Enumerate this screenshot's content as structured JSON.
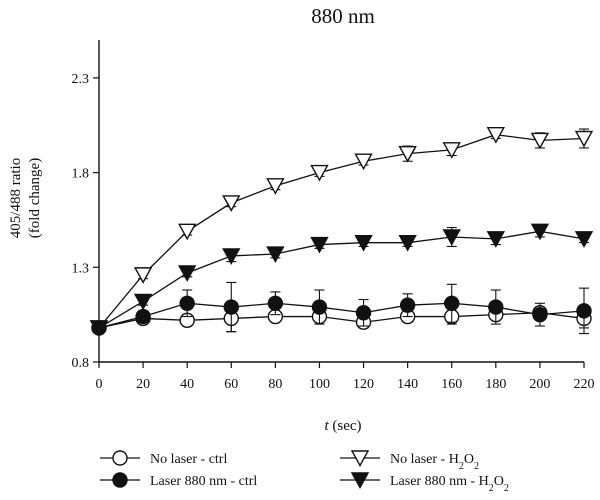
{
  "chart_data": {
    "type": "line",
    "title": "880 nm",
    "xlabel_italic": "t",
    "xlabel_rest": " (sec)",
    "ylabel_line1": "405/488 ratio",
    "ylabel_line2": "(fold change)",
    "x": [
      0,
      20,
      40,
      60,
      80,
      100,
      120,
      140,
      160,
      180,
      200,
      220
    ],
    "xlim": [
      0,
      220
    ],
    "ylim": [
      0.8,
      2.5
    ],
    "yticks": [
      0.8,
      1.3,
      1.8,
      2.3
    ],
    "ytick_labels": [
      "0.8",
      "1.3",
      "1.8",
      "2.3"
    ],
    "xtick_labels": [
      "0",
      "20",
      "40",
      "60",
      "80",
      "100",
      "120",
      "140",
      "160",
      "180",
      "200",
      "220"
    ],
    "grid": false,
    "legend_position": "bottom",
    "series": [
      {
        "name": "No laser - ctrl",
        "label_prefix": "No laser - ctrl",
        "label_sub": "",
        "label_suffix": "",
        "marker": "circle-open",
        "values": [
          0.98,
          1.03,
          1.02,
          1.03,
          1.04,
          1.04,
          1.01,
          1.04,
          1.04,
          1.05,
          1.06,
          1.03
        ],
        "errors": [
          0.01,
          0.02,
          0.03,
          0.07,
          0.02,
          0.03,
          0.03,
          0.03,
          0.04,
          0.02,
          0.02,
          0.05
        ]
      },
      {
        "name": "Laser 880 nm - ctrl",
        "label_prefix": "Laser 880 nm - ctrl",
        "label_sub": "",
        "label_suffix": "",
        "marker": "circle-filled",
        "values": [
          0.98,
          1.04,
          1.11,
          1.09,
          1.11,
          1.09,
          1.06,
          1.1,
          1.11,
          1.09,
          1.05,
          1.07
        ],
        "errors": [
          0.01,
          0.03,
          0.07,
          0.13,
          0.06,
          0.09,
          0.07,
          0.06,
          0.1,
          0.09,
          0.06,
          0.12
        ]
      },
      {
        "name": "No laser - H2O2",
        "label_prefix": "No laser - H",
        "label_sub": "2",
        "label_suffix": "O",
        "label_sub2": "2",
        "marker": "triangle-down-open",
        "values": [
          0.98,
          1.26,
          1.49,
          1.64,
          1.73,
          1.8,
          1.86,
          1.9,
          1.92,
          2.0,
          1.97,
          1.98
        ],
        "errors": [
          0.01,
          0.02,
          0.02,
          0.02,
          0.02,
          0.02,
          0.02,
          0.04,
          0.03,
          0.02,
          0.04,
          0.05
        ]
      },
      {
        "name": "Laser 880 nm - H2O2",
        "label_prefix": "Laser 880 nm - H",
        "label_sub": "2",
        "label_suffix": "O",
        "label_sub2": "2",
        "marker": "triangle-down-filled",
        "values": [
          0.98,
          1.12,
          1.27,
          1.36,
          1.37,
          1.42,
          1.43,
          1.43,
          1.46,
          1.45,
          1.49,
          1.45
        ],
        "errors": [
          0.01,
          0.02,
          0.02,
          0.03,
          0.02,
          0.02,
          0.02,
          0.02,
          0.05,
          0.03,
          0.03,
          0.02
        ]
      }
    ]
  }
}
